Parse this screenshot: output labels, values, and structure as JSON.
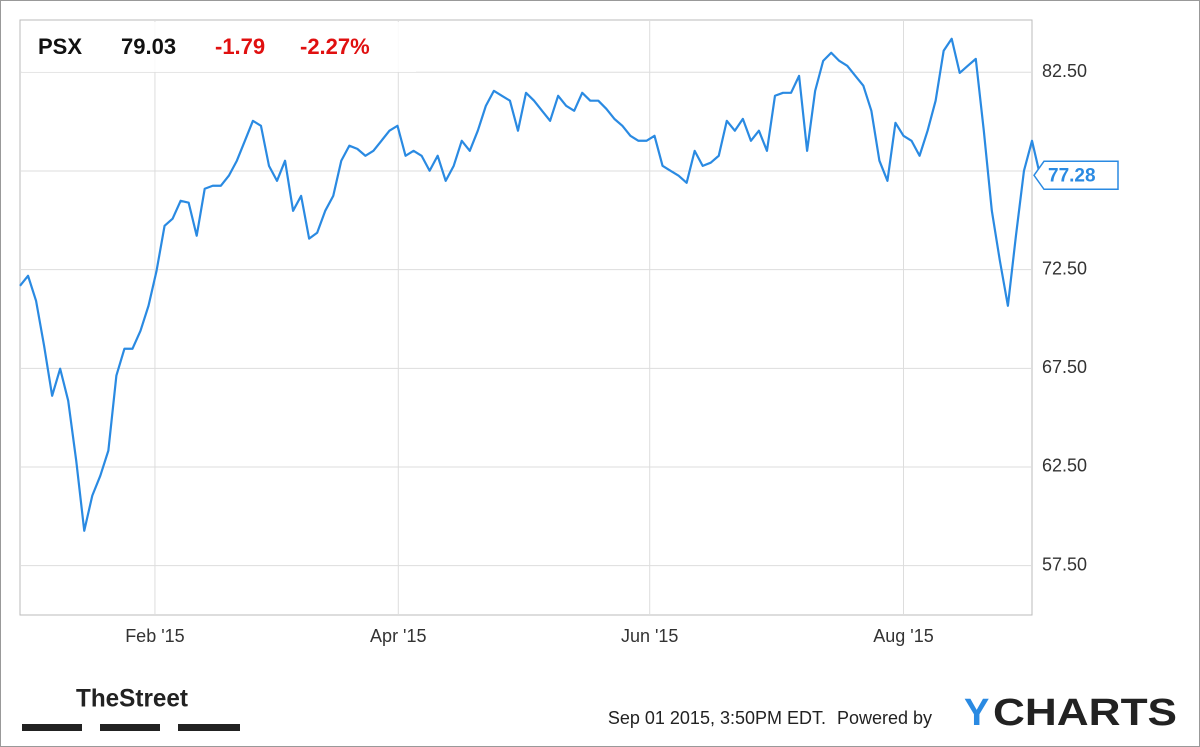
{
  "chart_data": {
    "type": "line",
    "ticker": "PSX",
    "change": -1.79,
    "change_percent": "-2.27%",
    "series": [
      {
        "color": "#2a8ae2",
        "values": [
          71.68,
          72.19,
          70.92,
          68.64,
          66.11,
          67.48,
          65.86,
          62.82,
          59.27,
          61.05,
          62.06,
          63.33,
          67.13,
          68.49,
          68.49,
          69.4,
          70.67,
          72.44,
          74.72,
          75.08,
          75.99,
          75.89,
          74.22,
          76.6,
          76.75,
          76.75,
          77.26,
          78.02,
          79.03,
          80.04,
          79.79,
          77.76,
          77.0,
          78.02,
          75.48,
          76.24,
          74.07,
          74.37,
          75.48,
          76.24,
          78.02,
          78.78,
          78.62,
          78.27,
          78.52,
          79.03,
          79.54,
          79.79,
          78.27,
          78.52,
          78.27,
          77.51,
          78.27,
          77.0,
          77.76,
          79.03,
          78.52,
          79.54,
          80.8,
          81.56,
          81.31,
          81.06,
          79.54,
          81.46,
          81.06,
          80.55,
          80.04,
          81.31,
          80.8,
          80.55,
          81.46,
          81.06,
          81.06,
          80.65,
          80.14,
          79.79,
          79.28,
          79.03,
          79.03,
          79.28,
          77.76,
          77.51,
          77.26,
          76.9,
          78.52,
          77.76,
          77.92,
          78.27,
          80.04,
          79.54,
          80.14,
          79.03,
          79.54,
          78.52,
          81.31,
          81.46,
          81.46,
          82.32,
          78.52,
          81.56,
          83.08,
          83.49,
          83.08,
          82.83,
          82.32,
          81.82,
          80.55,
          78.02,
          77.0,
          79.94,
          79.28,
          79.03,
          78.27,
          79.54,
          81.06,
          83.59,
          84.2,
          82.47,
          82.83,
          83.18,
          79.54,
          75.48,
          72.95,
          70.67,
          74.22,
          77.51,
          79.03,
          77.28
        ]
      }
    ],
    "xlim": [
      0,
      126
    ],
    "xticks": [
      {
        "value": 16.8,
        "label": "Feb '15"
      },
      {
        "value": 47.1,
        "label": "Apr '15"
      },
      {
        "value": 78.4,
        "label": "Jun '15"
      },
      {
        "value": 110.0,
        "label": "Aug '15"
      }
    ],
    "ylim": [
      55,
      85.15
    ],
    "yticks": [
      {
        "value": 57.5,
        "label": "57.50"
      },
      {
        "value": 62.5,
        "label": "62.50"
      },
      {
        "value": 67.5,
        "label": "67.50"
      },
      {
        "value": 72.5,
        "label": "72.50"
      },
      {
        "value": 77.5,
        "label": null
      },
      {
        "value": 82.5,
        "label": "82.50"
      }
    ],
    "grid": true,
    "timestamp": "Sep 01 2015, 3:50PM EDT.",
    "powered_by": "Powered by",
    "brand_y": "Y",
    "brand_rest": "CHARTS",
    "source_logo": "TheStreet"
  }
}
